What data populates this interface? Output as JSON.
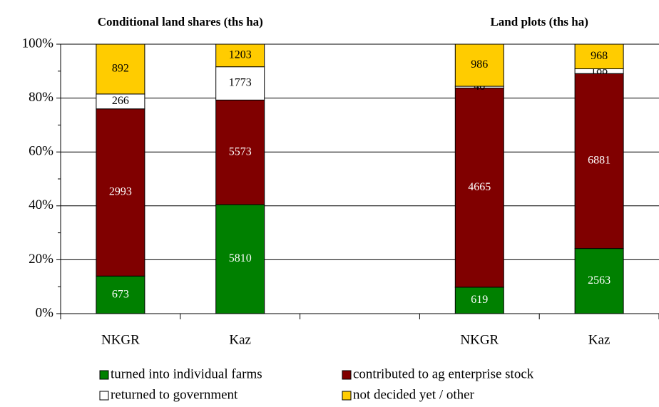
{
  "chart_data": {
    "type": "bar",
    "stacked": "percent",
    "group_titles": [
      "Conditional land shares (ths ha)",
      "Land plots (ths ha)"
    ],
    "categories": [
      "NKGR",
      "Kaz",
      null,
      "NKGR",
      "Kaz"
    ],
    "series": [
      {
        "name": "turned into individual farms",
        "color": "#008000",
        "text_color": "#ffffff",
        "values": [
          673,
          5810,
          null,
          619,
          2563
        ]
      },
      {
        "name": "contributed to ag enterprise stock",
        "color": "#800000",
        "text_color": "#ffffff",
        "values": [
          2993,
          5573,
          null,
          4665,
          6881
        ]
      },
      {
        "name": "returned to government",
        "color": "#ffffff",
        "text_color": "#000000",
        "values": [
          266,
          1773,
          null,
          40,
          188
        ]
      },
      {
        "name": "not decided yet / other",
        "color": "#ffcc00",
        "text_color": "#000000",
        "values": [
          892,
          1203,
          null,
          986,
          968
        ]
      }
    ],
    "ylim": [
      0,
      100
    ],
    "yticks": [
      {
        "value": 0,
        "label": "0%"
      },
      {
        "value": 20,
        "label": "20%"
      },
      {
        "value": 40,
        "label": "40%"
      },
      {
        "value": 60,
        "label": "60%"
      },
      {
        "value": 80,
        "label": "80%"
      },
      {
        "value": 100,
        "label": "100%"
      }
    ],
    "grid": true
  }
}
